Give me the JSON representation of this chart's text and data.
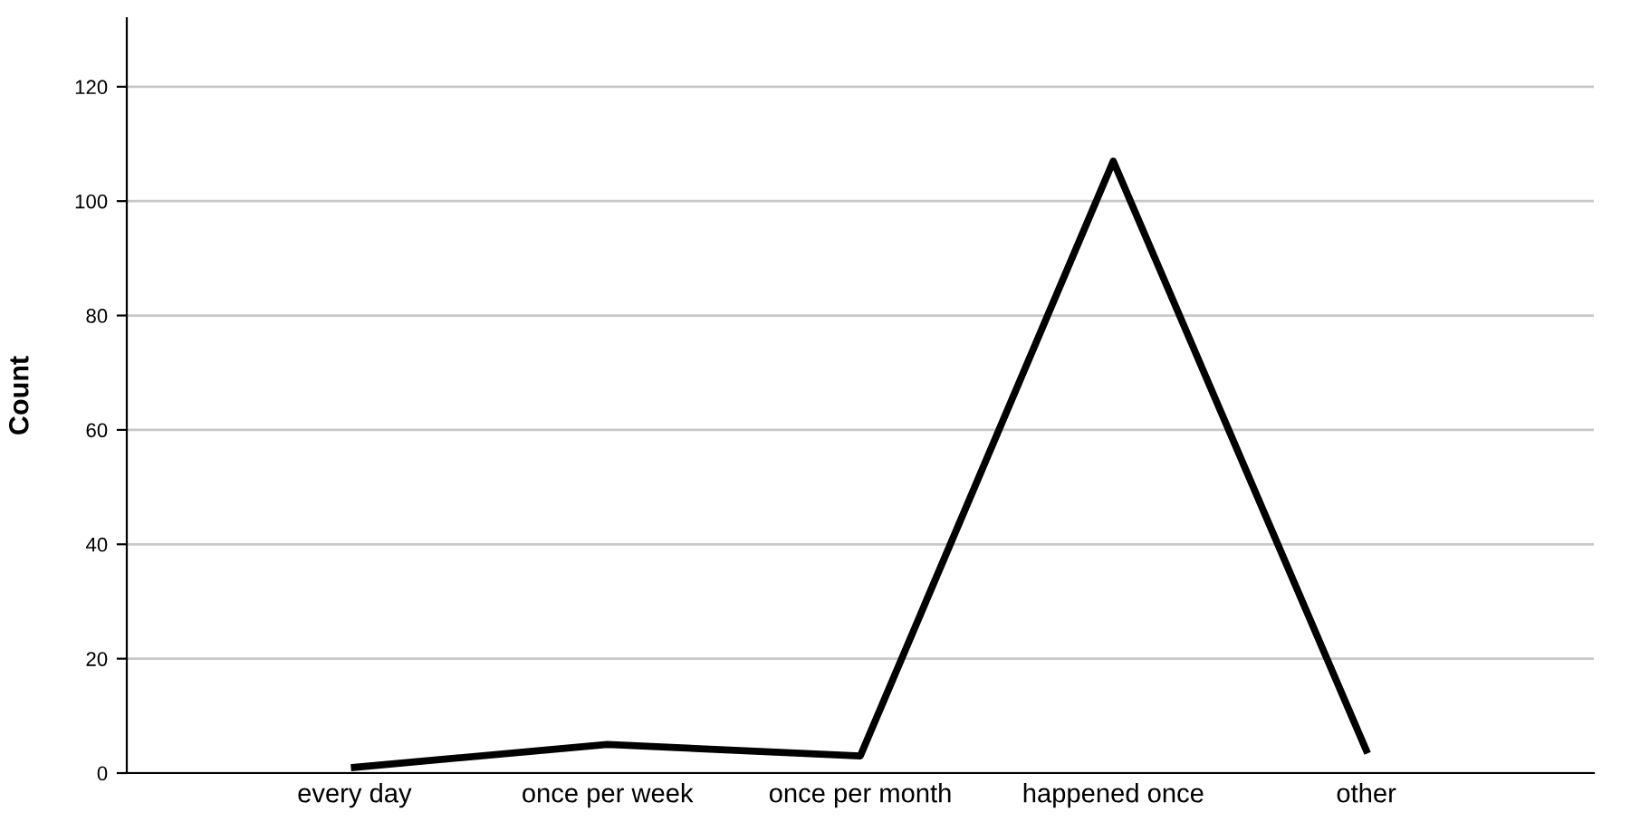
{
  "chart_data": {
    "type": "line",
    "ylabel": "Count",
    "categories": [
      "every day",
      "once per week",
      "once per month",
      "happened once",
      "other"
    ],
    "values": [
      1,
      5,
      3,
      107,
      4
    ],
    "color": "#000000",
    "ylim": [
      0,
      132
    ],
    "yticks": [
      0,
      20,
      40,
      60,
      80,
      100,
      120
    ],
    "grid": "y",
    "marker": "none",
    "line_style": "solid"
  }
}
